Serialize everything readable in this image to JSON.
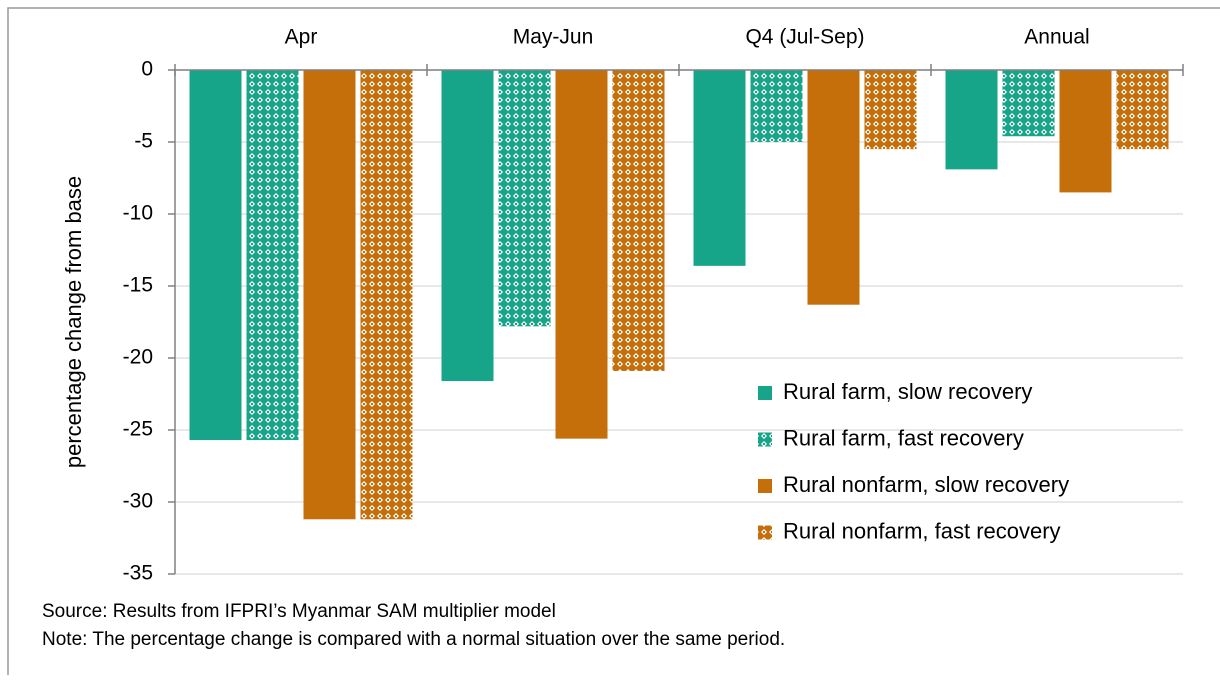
{
  "chart_data": {
    "type": "bar",
    "categories": [
      "Apr",
      "May-Jun",
      "Q4 (Jul-Sep)",
      "Annual"
    ],
    "series": [
      {
        "name": "Rural farm, slow recovery",
        "color": "#17a589",
        "fill_style": "solid",
        "values": [
          -25.7,
          -21.6,
          -13.6,
          -6.9
        ]
      },
      {
        "name": "Rural farm, fast recovery",
        "color": "#17a589",
        "fill_style": "pattern",
        "values": [
          -25.7,
          -17.8,
          -5.0,
          -4.6
        ]
      },
      {
        "name": "Rural nonfarm, slow recovery",
        "color": "#c46f0a",
        "fill_style": "solid",
        "values": [
          -31.2,
          -25.6,
          -16.3,
          -8.5
        ]
      },
      {
        "name": "Rural nonfarm, fast recovery",
        "color": "#c46f0a",
        "fill_style": "pattern",
        "values": [
          -31.2,
          -20.9,
          -5.5,
          -5.5
        ]
      }
    ],
    "y_label": "percentage change from base",
    "ylim": [
      -35,
      0
    ],
    "yticks": [
      0,
      -5,
      -10,
      -15,
      -20,
      -25,
      -30,
      -35
    ],
    "grid": true,
    "legend": "lower right",
    "source": "Source: Results from IFPRI’s Myanmar SAM multiplier model",
    "note": "Note: The percentage change is compared with a normal situation over the same period."
  }
}
